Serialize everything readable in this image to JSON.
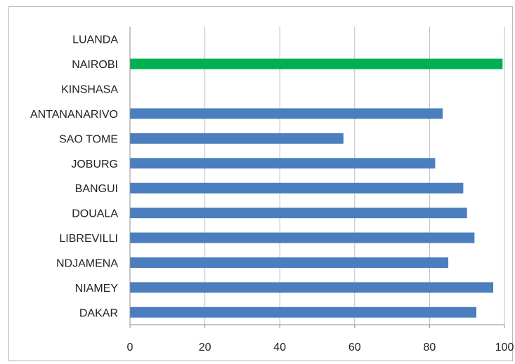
{
  "chart_data": {
    "type": "bar",
    "orientation": "horizontal",
    "categories": [
      "LUANDA",
      "NAIROBI",
      "KINSHASA",
      "ANTANANARIVO",
      "SAO TOME",
      "JOBURG",
      "BANGUI",
      "DOUALA",
      "LIBREVILLI",
      "NDJAMENA",
      "NIAMEY",
      "DAKAR"
    ],
    "values": [
      0,
      99.5,
      0,
      83.5,
      57,
      81.5,
      89,
      90,
      92,
      85,
      97,
      92.5
    ],
    "bar_colors": [
      "#4a7ebf",
      "#00b050",
      "#4a7ebf",
      "#4a7ebf",
      "#4a7ebf",
      "#4a7ebf",
      "#4a7ebf",
      "#4a7ebf",
      "#4a7ebf",
      "#4a7ebf",
      "#4a7ebf",
      "#4a7ebf"
    ],
    "highlight_color": "#00b050",
    "default_color": "#4a7ebf",
    "xlim": [
      0,
      100
    ],
    "xticks": [
      0,
      20,
      40,
      60,
      80,
      100
    ],
    "grid": "vertical",
    "title": "",
    "xlabel": "",
    "ylabel": ""
  }
}
